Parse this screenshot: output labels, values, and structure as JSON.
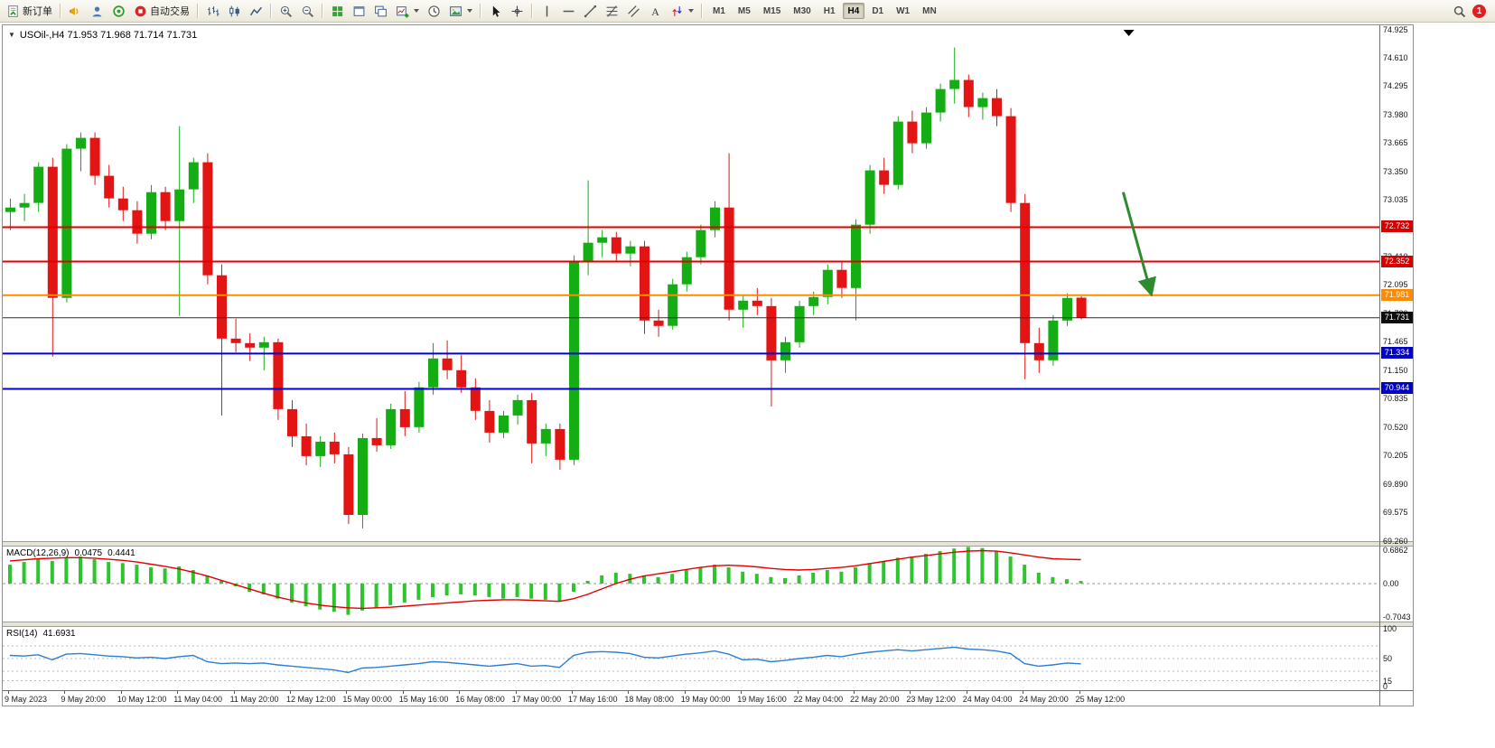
{
  "colors": {
    "up": "#14ad14",
    "down": "#e31414",
    "macd_hist": "#2fc42f",
    "macd_signal": "#e30000",
    "rsi_line": "#2b7fd4",
    "grid_dash": "#b8b8b8"
  },
  "toolbar": {
    "new_order_label": "新订单",
    "autotrade_label": "自动交易",
    "timeframes": [
      "M1",
      "M5",
      "M15",
      "M30",
      "H1",
      "H4",
      "D1",
      "W1",
      "MN"
    ],
    "active_timeframe": "H4",
    "notification_count": "1"
  },
  "chart": {
    "title": "USOil-,H4 71.953 71.968 71.714 71.731",
    "symbol": "USOil-",
    "period": "H4",
    "open": "71.953",
    "high": "71.968",
    "low": "71.714",
    "close": "71.731"
  },
  "price_lines": [
    {
      "price": 72.732,
      "label": "72.732",
      "color": "#e00000",
      "badge": "#d40000",
      "width": 2
    },
    {
      "price": 72.352,
      "label": "72.352",
      "color": "#e00000",
      "badge": "#d40000",
      "width": 2
    },
    {
      "price": 71.981,
      "label": "71.981",
      "color": "#ff8a00",
      "badge": "#ff8a00",
      "width": 2
    },
    {
      "price": 71.731,
      "label": "71.731",
      "color": "#2a2a2a",
      "badge": "#0d0d0d",
      "width": 1
    },
    {
      "price": 71.334,
      "label": "71.334",
      "color": "#0000d8",
      "badge": "#0000c8",
      "width": 2
    },
    {
      "price": 70.944,
      "label": "70.944",
      "color": "#0000d8",
      "badge": "#0000c8",
      "width": 2
    }
  ],
  "annotation": {
    "type": "trend-arrow",
    "direction": "down",
    "color": "#2e8b2e",
    "from_bar": 79,
    "from_price": 73.12,
    "to_bar": 81,
    "to_price": 71.99,
    "top_marker_bar": 79.4
  },
  "chart_data": [
    {
      "type": "candlestick",
      "symbol": "USOil-",
      "period": "H4",
      "ylim": [
        69.26,
        74.925
      ],
      "y_ticks": [
        "74.925",
        "74.610",
        "74.295",
        "73.980",
        "73.665",
        "73.350",
        "73.035",
        "72.720",
        "72.410",
        "72.095",
        "71.780",
        "71.465",
        "71.150",
        "70.835",
        "70.520",
        "70.205",
        "69.890",
        "69.575",
        "69.260"
      ],
      "x_labels": [
        "9 May 2023",
        "9 May 20:00",
        "10 May 12:00",
        "11 May 04:00",
        "11 May 20:00",
        "12 May 12:00",
        "15 May 00:00",
        "15 May 16:00",
        "16 May 08:00",
        "17 May 00:00",
        "17 May 16:00",
        "18 May 08:00",
        "19 May 00:00",
        "19 May 16:00",
        "22 May 04:00",
        "22 May 20:00",
        "23 May 12:00",
        "24 May 04:00",
        "24 May 20:00",
        "25 May 12:00"
      ],
      "candles": [
        [
          72.9,
          73.05,
          72.7,
          72.95
        ],
        [
          72.95,
          73.1,
          72.8,
          73.0
        ],
        [
          73.0,
          73.45,
          72.9,
          73.4
        ],
        [
          73.4,
          73.5,
          71.3,
          71.95
        ],
        [
          71.95,
          73.65,
          71.9,
          73.6
        ],
        [
          73.6,
          73.78,
          73.35,
          73.72
        ],
        [
          73.72,
          73.78,
          73.2,
          73.3
        ],
        [
          73.3,
          73.42,
          72.95,
          73.05
        ],
        [
          73.05,
          73.18,
          72.8,
          72.92
        ],
        [
          72.92,
          73.02,
          72.55,
          72.66
        ],
        [
          72.66,
          73.2,
          72.6,
          73.12
        ],
        [
          73.12,
          73.18,
          72.7,
          72.8
        ],
        [
          72.8,
          73.85,
          71.75,
          73.15
        ],
        [
          73.15,
          73.5,
          73.0,
          73.45
        ],
        [
          73.45,
          73.55,
          72.1,
          72.2
        ],
        [
          72.2,
          72.32,
          70.65,
          71.5
        ],
        [
          71.5,
          71.72,
          71.35,
          71.45
        ],
        [
          71.45,
          71.56,
          71.25,
          71.4
        ],
        [
          71.4,
          71.52,
          71.15,
          71.46
        ],
        [
          71.46,
          71.5,
          70.6,
          70.72
        ],
        [
          70.72,
          70.82,
          70.3,
          70.42
        ],
        [
          70.42,
          70.56,
          70.1,
          70.2
        ],
        [
          70.2,
          70.42,
          70.08,
          70.36
        ],
        [
          70.36,
          70.46,
          70.12,
          70.22
        ],
        [
          70.22,
          70.3,
          69.45,
          69.55
        ],
        [
          69.55,
          70.45,
          69.4,
          70.4
        ],
        [
          70.4,
          70.62,
          70.25,
          70.32
        ],
        [
          70.32,
          70.78,
          70.28,
          70.72
        ],
        [
          70.72,
          70.92,
          70.42,
          70.52
        ],
        [
          70.52,
          71.02,
          70.46,
          70.96
        ],
        [
          70.96,
          71.45,
          70.88,
          71.28
        ],
        [
          71.28,
          71.48,
          71.05,
          71.15
        ],
        [
          71.15,
          71.32,
          70.9,
          70.96
        ],
        [
          70.96,
          71.06,
          70.6,
          70.7
        ],
        [
          70.7,
          70.82,
          70.35,
          70.46
        ],
        [
          70.46,
          70.7,
          70.4,
          70.65
        ],
        [
          70.65,
          70.88,
          70.55,
          70.82
        ],
        [
          70.82,
          70.9,
          70.12,
          70.34
        ],
        [
          70.34,
          70.56,
          70.2,
          70.5
        ],
        [
          70.5,
          70.56,
          70.05,
          70.16
        ],
        [
          70.16,
          72.42,
          70.1,
          72.36
        ],
        [
          72.36,
          73.25,
          72.2,
          72.56
        ],
        [
          72.56,
          72.7,
          72.4,
          72.62
        ],
        [
          72.62,
          72.68,
          72.35,
          72.44
        ],
        [
          72.44,
          72.58,
          72.3,
          72.52
        ],
        [
          72.52,
          72.58,
          71.55,
          71.7
        ],
        [
          71.7,
          71.82,
          71.52,
          71.64
        ],
        [
          71.64,
          72.16,
          71.6,
          72.1
        ],
        [
          72.1,
          72.46,
          72.02,
          72.4
        ],
        [
          72.4,
          72.76,
          72.32,
          72.7
        ],
        [
          72.7,
          73.02,
          72.62,
          72.95
        ],
        [
          72.95,
          73.55,
          71.7,
          71.82
        ],
        [
          71.82,
          71.98,
          71.62,
          71.92
        ],
        [
          71.92,
          72.06,
          71.76,
          71.86
        ],
        [
          71.86,
          71.95,
          70.75,
          71.26
        ],
        [
          71.26,
          71.52,
          71.12,
          71.46
        ],
        [
          71.46,
          71.92,
          71.4,
          71.86
        ],
        [
          71.86,
          72.02,
          71.76,
          71.96
        ],
        [
          71.96,
          72.32,
          71.88,
          72.26
        ],
        [
          72.26,
          72.36,
          71.95,
          72.06
        ],
        [
          72.06,
          72.82,
          71.7,
          72.76
        ],
        [
          72.76,
          73.42,
          72.66,
          73.36
        ],
        [
          73.36,
          73.5,
          73.1,
          73.2
        ],
        [
          73.2,
          73.96,
          73.15,
          73.9
        ],
        [
          73.9,
          74.02,
          73.55,
          73.66
        ],
        [
          73.66,
          74.06,
          73.6,
          74.0
        ],
        [
          74.0,
          74.32,
          73.9,
          74.26
        ],
        [
          74.26,
          74.72,
          74.1,
          74.36
        ],
        [
          74.36,
          74.42,
          73.95,
          74.06
        ],
        [
          74.06,
          74.22,
          73.92,
          74.16
        ],
        [
          74.16,
          74.26,
          73.85,
          73.96
        ],
        [
          73.96,
          74.05,
          72.9,
          73.0
        ],
        [
          73.0,
          73.1,
          71.05,
          71.45
        ],
        [
          71.45,
          71.62,
          71.12,
          71.26
        ],
        [
          71.26,
          71.76,
          71.2,
          71.7
        ],
        [
          71.7,
          72.0,
          71.64,
          71.95
        ],
        [
          71.953,
          71.968,
          71.714,
          71.731
        ]
      ]
    },
    {
      "type": "bar",
      "label": "MACD(12,26,9)",
      "value_main": "0.0475",
      "value_signal": "0.4441",
      "ylim": [
        -0.7043,
        0.6862
      ],
      "y_ticks": [
        "0.6862",
        "0.00",
        "-0.7043"
      ],
      "histogram": [
        0.35,
        0.4,
        0.45,
        0.42,
        0.48,
        0.5,
        0.45,
        0.4,
        0.38,
        0.35,
        0.3,
        0.28,
        0.32,
        0.25,
        0.15,
        0.05,
        -0.05,
        -0.15,
        -0.2,
        -0.28,
        -0.35,
        -0.42,
        -0.48,
        -0.52,
        -0.58,
        -0.5,
        -0.45,
        -0.4,
        -0.35,
        -0.3,
        -0.25,
        -0.22,
        -0.2,
        -0.22,
        -0.25,
        -0.28,
        -0.25,
        -0.28,
        -0.3,
        -0.32,
        -0.15,
        0.05,
        0.15,
        0.2,
        0.18,
        0.15,
        0.12,
        0.18,
        0.25,
        0.3,
        0.35,
        0.3,
        0.22,
        0.18,
        0.12,
        0.1,
        0.15,
        0.2,
        0.25,
        0.22,
        0.3,
        0.38,
        0.42,
        0.48,
        0.5,
        0.55,
        0.6,
        0.65,
        0.68,
        0.66,
        0.6,
        0.5,
        0.35,
        0.2,
        0.12,
        0.08,
        0.0475
      ],
      "signal": [
        0.42,
        0.44,
        0.46,
        0.47,
        0.48,
        0.48,
        0.47,
        0.45,
        0.43,
        0.4,
        0.36,
        0.32,
        0.27,
        0.21,
        0.14,
        0.06,
        -0.02,
        -0.1,
        -0.18,
        -0.25,
        -0.31,
        -0.36,
        -0.4,
        -0.43,
        -0.45,
        -0.46,
        -0.45,
        -0.44,
        -0.42,
        -0.4,
        -0.38,
        -0.36,
        -0.34,
        -0.32,
        -0.31,
        -0.3,
        -0.3,
        -0.31,
        -0.32,
        -0.33,
        -0.28,
        -0.2,
        -0.1,
        0.0,
        0.08,
        0.14,
        0.18,
        0.22,
        0.26,
        0.3,
        0.33,
        0.34,
        0.33,
        0.31,
        0.28,
        0.26,
        0.25,
        0.26,
        0.28,
        0.3,
        0.33,
        0.37,
        0.41,
        0.45,
        0.49,
        0.52,
        0.55,
        0.58,
        0.6,
        0.61,
        0.6,
        0.57,
        0.53,
        0.49,
        0.46,
        0.45,
        0.4441
      ]
    },
    {
      "type": "line",
      "label": "RSI(14)",
      "value": "41.6931",
      "ylim": [
        0,
        100
      ],
      "y_ticks": [
        "100",
        "50",
        "15",
        "0"
      ],
      "levels": [
        70,
        50,
        30,
        15
      ],
      "values": [
        55,
        54,
        56,
        48,
        57,
        58,
        56,
        54,
        53,
        51,
        52,
        50,
        53,
        55,
        45,
        42,
        43,
        42,
        43,
        40,
        38,
        36,
        34,
        32,
        28,
        35,
        36,
        38,
        40,
        42,
        45,
        44,
        42,
        40,
        38,
        40,
        42,
        38,
        39,
        36,
        55,
        60,
        61,
        60,
        58,
        52,
        51,
        54,
        57,
        59,
        62,
        57,
        48,
        49,
        45,
        47,
        50,
        52,
        55,
        53,
        57,
        60,
        62,
        64,
        62,
        64,
        66,
        68,
        65,
        64,
        62,
        58,
        42,
        38,
        40,
        43,
        41.6931
      ]
    }
  ]
}
